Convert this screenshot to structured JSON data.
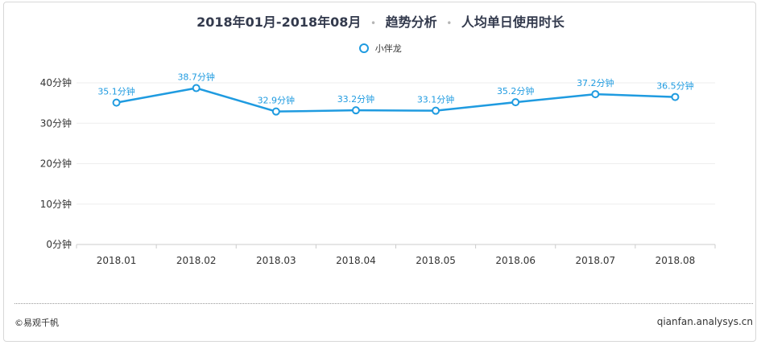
{
  "header": {
    "period": "2018年01月-2018年08月",
    "section": "趋势分析",
    "metric": "人均单日使用时长"
  },
  "footer": {
    "copyright": "©易观千帆",
    "site": "qianfan.analysys.cn"
  },
  "colors": {
    "series": "#1f9be0",
    "title": "#333a4d",
    "grid": "#eeeeee",
    "axis": "#cccccc"
  },
  "chart_data": {
    "type": "line",
    "title": "2018年01月-2018年08月 · 趋势分析 · 人均单日使用时长",
    "categories": [
      "2018.01",
      "2018.02",
      "2018.03",
      "2018.04",
      "2018.05",
      "2018.06",
      "2018.07",
      "2018.08"
    ],
    "series": [
      {
        "name": "小伴龙",
        "values": [
          35.1,
          38.7,
          32.9,
          33.2,
          33.1,
          35.2,
          37.2,
          36.5
        ],
        "data_labels": [
          "35.1分钟",
          "38.7分钟",
          "32.9分钟",
          "33.2分钟",
          "33.1分钟",
          "35.2分钟",
          "37.2分钟",
          "36.5分钟"
        ]
      }
    ],
    "ylim": [
      0,
      40
    ],
    "yticks": [
      0,
      10,
      20,
      30,
      40
    ],
    "ytick_labels": [
      "0分钟",
      "10分钟",
      "20分钟",
      "30分钟",
      "40分钟"
    ],
    "grid": true,
    "legend_position": "top-center"
  }
}
